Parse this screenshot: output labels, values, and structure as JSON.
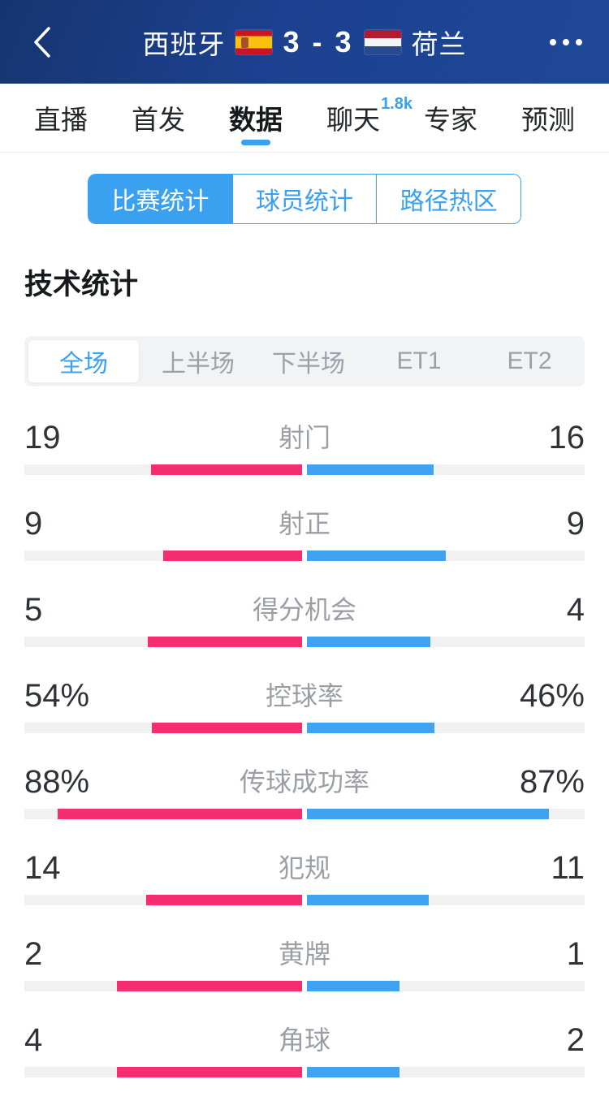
{
  "header": {
    "home_team": "西班牙",
    "score": "3 - 3",
    "away_team": "荷兰"
  },
  "icons": {
    "back": "chevron-left",
    "more": "ellipsis",
    "home_flag": "spain-flag",
    "away_flag": "netherlands-flag"
  },
  "nav_tabs": [
    {
      "id": "live",
      "label": "直播",
      "active": false
    },
    {
      "id": "lineup",
      "label": "首发",
      "active": false
    },
    {
      "id": "data",
      "label": "数据",
      "active": true
    },
    {
      "id": "chat",
      "label": "聊天",
      "active": false,
      "badge": "1.8k"
    },
    {
      "id": "experts",
      "label": "专家",
      "active": false
    },
    {
      "id": "prediction",
      "label": "预测",
      "active": false
    }
  ],
  "stat_tabs": [
    {
      "id": "match-stats",
      "label": "比赛统计",
      "active": true
    },
    {
      "id": "player-stats",
      "label": "球员统计",
      "active": false
    },
    {
      "id": "heat-zones",
      "label": "路径热区",
      "active": false
    }
  ],
  "section_title": "技术统计",
  "period_tabs": [
    {
      "id": "full-match",
      "label": "全场",
      "active": true
    },
    {
      "id": "first-half",
      "label": "上半场",
      "active": false
    },
    {
      "id": "second-half",
      "label": "下半场",
      "active": false
    },
    {
      "id": "et1",
      "label": "ET1",
      "active": false
    },
    {
      "id": "et2",
      "label": "ET2",
      "active": false
    }
  ],
  "chart_data": {
    "type": "bar",
    "title": "技术统计",
    "legend_position": "none",
    "categories": [
      "射门",
      "射正",
      "得分机会",
      "控球率",
      "传球成功率",
      "犯规",
      "黄牌",
      "角球"
    ],
    "category_ids": [
      "shots",
      "shots-on-target",
      "big-chances",
      "possession",
      "pass-accuracy",
      "fouls",
      "yellow-cards",
      "corners"
    ],
    "series": [
      {
        "name": "西班牙",
        "color": "#f42e6f",
        "values": [
          "19",
          "9",
          "5",
          "54%",
          "88%",
          "14",
          "2",
          "4"
        ]
      },
      {
        "name": "荷兰",
        "color": "#3fa3f2",
        "values": [
          "16",
          "9",
          "4",
          "46%",
          "87%",
          "11",
          "1",
          "2"
        ]
      }
    ],
    "bar_rule": "percent values scaled /100, count values scaled /(home+away), bars grow outward from center"
  },
  "colors": {
    "accent_blue": "#3aa0f0",
    "home_pink": "#f42e6f",
    "away_blue": "#3fa3f2",
    "header_blue": "#1c4190",
    "track_gray": "#f1f1f2"
  }
}
